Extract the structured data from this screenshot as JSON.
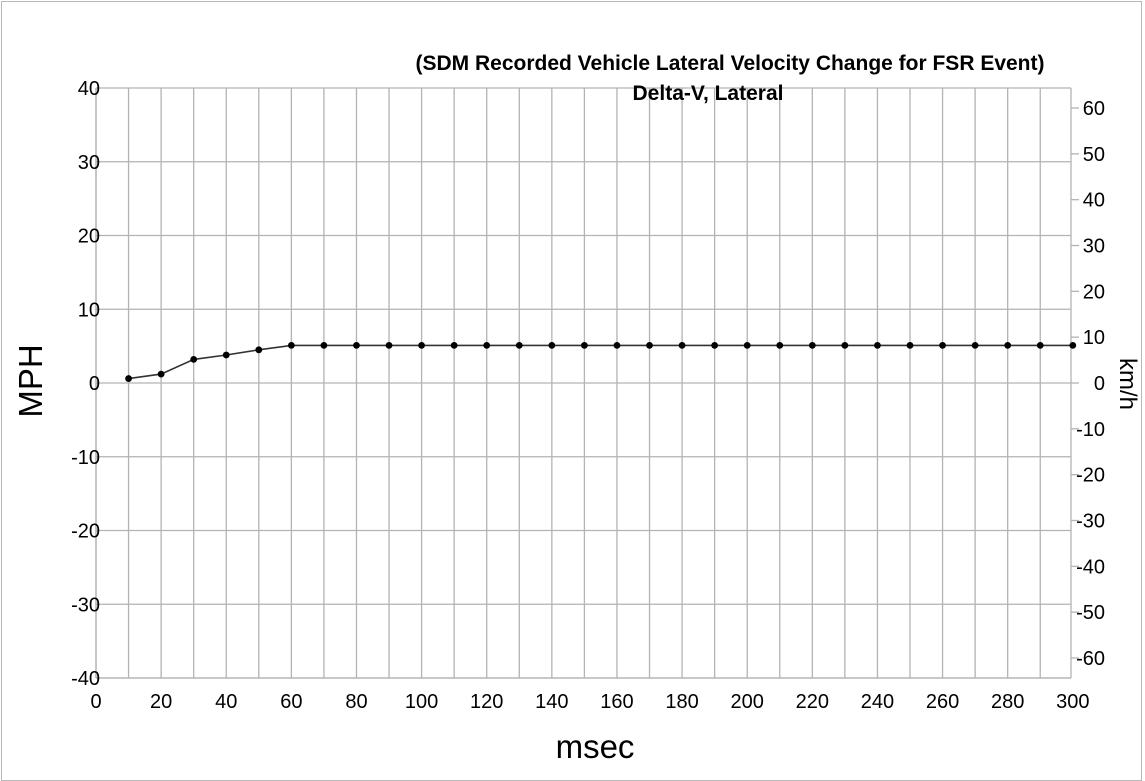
{
  "chart_data": {
    "type": "line",
    "title": "Delta-V, Lateral",
    "subtitle": "(SDM Recorded Vehicle Lateral Velocity Change for FSR Event)",
    "xlabel": "msec",
    "ylabel": "MPH",
    "ylabel_right": "km/h",
    "xlim": [
      0,
      300
    ],
    "ylim": [
      -40,
      40
    ],
    "ylim_right": [
      -64.37,
      64.37
    ],
    "x_ticks": [
      0,
      20,
      40,
      60,
      80,
      100,
      120,
      140,
      160,
      180,
      200,
      220,
      240,
      260,
      280,
      300
    ],
    "y_ticks": [
      -40,
      -30,
      -20,
      -10,
      0,
      10,
      20,
      30,
      40
    ],
    "y_ticks_right": [
      -60,
      -50,
      -40,
      -30,
      -20,
      -10,
      0,
      10,
      20,
      30,
      40,
      50,
      60
    ],
    "grid": true,
    "legend": "none",
    "series": [
      {
        "x": [
          10,
          20,
          30,
          40,
          50,
          60,
          70,
          80,
          90,
          100,
          110,
          120,
          130,
          140,
          150,
          160,
          170,
          180,
          190,
          200,
          210,
          220,
          230,
          240,
          250,
          260,
          270,
          280,
          290,
          300
        ],
        "values": [
          0.6,
          1.2,
          3.2,
          3.8,
          4.5,
          5.1,
          5.1,
          5.1,
          5.1,
          5.1,
          5.1,
          5.1,
          5.1,
          5.1,
          5.1,
          5.1,
          5.1,
          5.1,
          5.1,
          5.1,
          5.1,
          5.1,
          5.1,
          5.1,
          5.1,
          5.1,
          5.1,
          5.1,
          5.1,
          5.1
        ]
      }
    ]
  }
}
